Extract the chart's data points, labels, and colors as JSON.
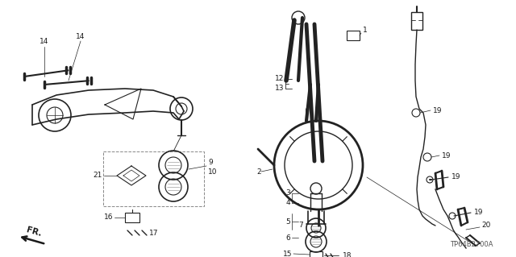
{
  "background_color": "#ffffff",
  "fig_width": 6.4,
  "fig_height": 3.19,
  "dpi": 100,
  "diagram_code": "TP64B2700A",
  "text_color": "#1a1a1a",
  "label_fontsize": 6.5,
  "diagram_fontsize": 6,
  "line_color": "#222222",
  "line_width": 0.75,
  "gray": "#888888",
  "dark_gray": "#444444"
}
